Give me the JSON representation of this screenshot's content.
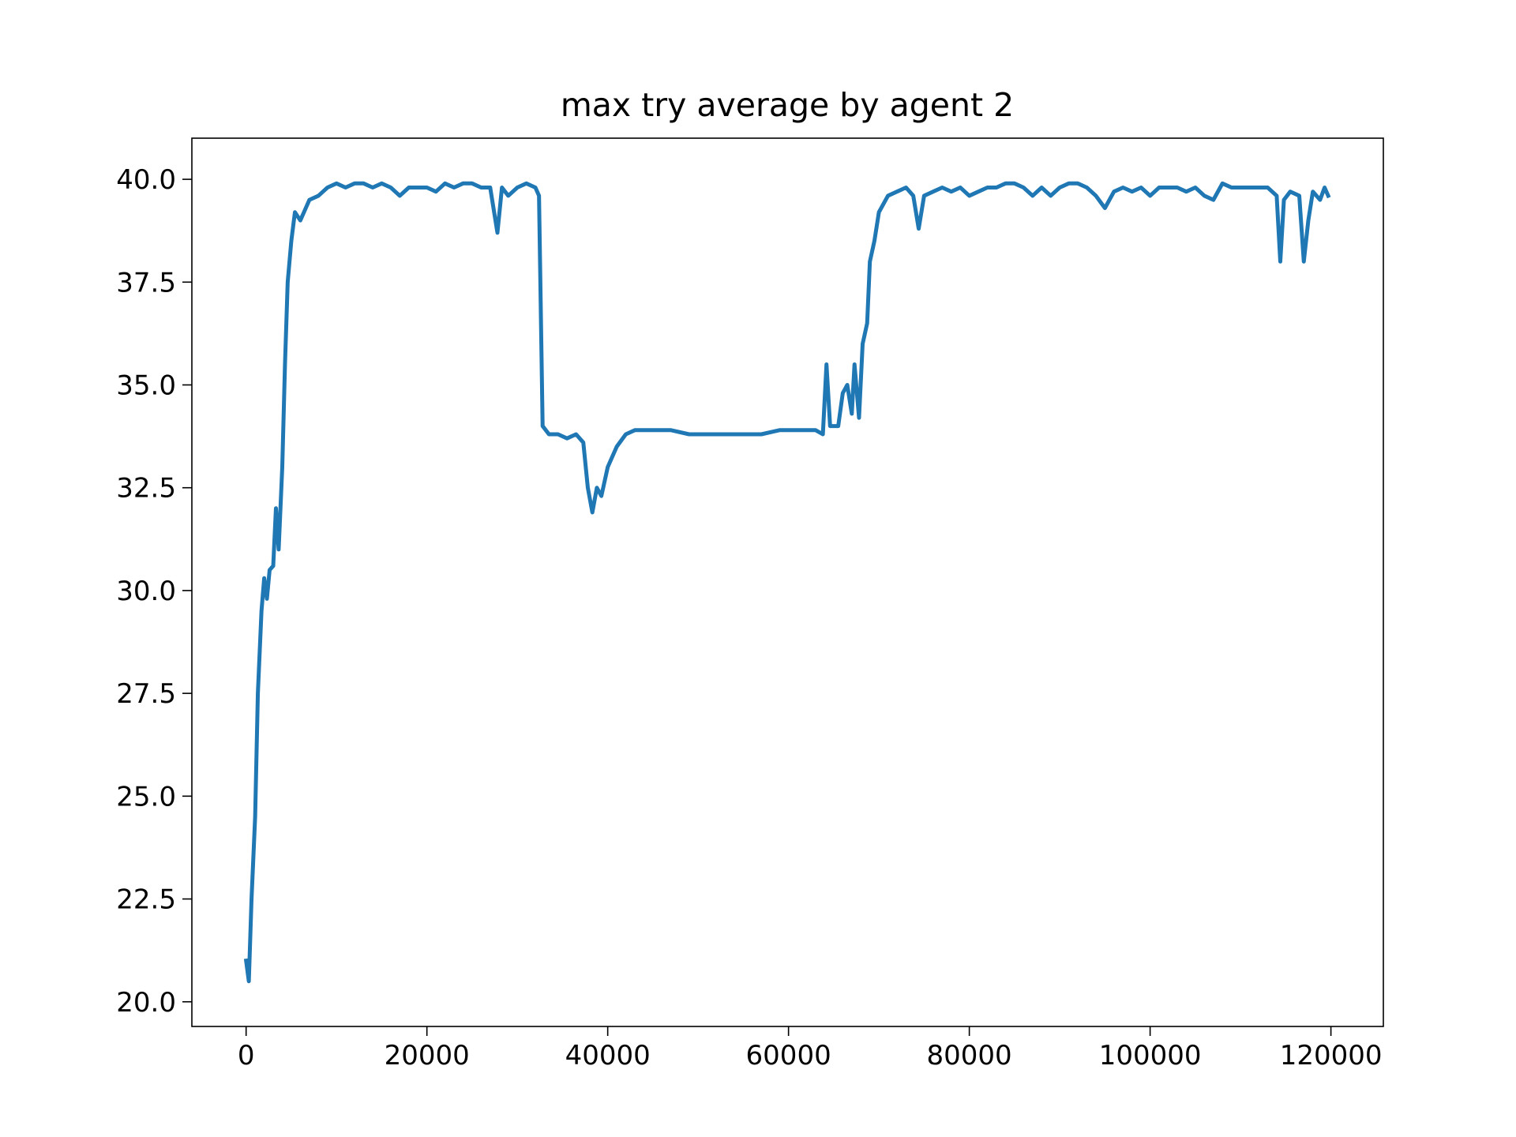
{
  "chart_data": {
    "type": "line",
    "title": "max try average by agent 2",
    "x": [
      0,
      300,
      600,
      1000,
      1300,
      1700,
      2000,
      2300,
      2600,
      3000,
      3300,
      3600,
      4000,
      4300,
      4600,
      5000,
      5400,
      6000,
      7000,
      8000,
      9000,
      10000,
      11000,
      12000,
      13000,
      14000,
      15000,
      16000,
      17000,
      18000,
      19000,
      20000,
      21000,
      22000,
      23000,
      24000,
      25000,
      26000,
      27000,
      27800,
      28300,
      29000,
      30000,
      31000,
      32000,
      32400,
      32800,
      33500,
      34500,
      35500,
      36500,
      37300,
      37800,
      38300,
      38800,
      39300,
      40000,
      41000,
      42000,
      43000,
      45000,
      47000,
      49000,
      51000,
      53000,
      55000,
      57000,
      59000,
      61000,
      63000,
      63800,
      64200,
      64600,
      65500,
      66000,
      66500,
      67000,
      67300,
      67800,
      68200,
      68700,
      69000,
      69500,
      70000,
      71000,
      72000,
      73000,
      73800,
      74400,
      75000,
      76000,
      77000,
      78000,
      79000,
      80000,
      81000,
      82000,
      83000,
      84000,
      85000,
      86000,
      87000,
      88000,
      89000,
      90000,
      91000,
      92000,
      93000,
      94000,
      95000,
      96000,
      97000,
      98000,
      99000,
      100000,
      101000,
      102000,
      103000,
      104000,
      105000,
      106000,
      107000,
      108000,
      109000,
      110000,
      111000,
      112000,
      113000,
      114000,
      114400,
      114800,
      115500,
      116500,
      117000,
      117500,
      118000,
      118800,
      119300,
      119700
    ],
    "series": [
      {
        "color": "#1f77b4",
        "values": [
          21.0,
          20.5,
          22.5,
          24.5,
          27.5,
          29.5,
          30.3,
          29.8,
          30.5,
          30.6,
          32.0,
          31.0,
          33.0,
          35.5,
          37.5,
          38.5,
          39.2,
          39.0,
          39.5,
          39.6,
          39.8,
          39.9,
          39.8,
          39.9,
          39.9,
          39.8,
          39.9,
          39.8,
          39.6,
          39.8,
          39.8,
          39.8,
          39.7,
          39.9,
          39.8,
          39.9,
          39.9,
          39.8,
          39.8,
          38.7,
          39.8,
          39.6,
          39.8,
          39.9,
          39.8,
          39.6,
          34.0,
          33.8,
          33.8,
          33.7,
          33.8,
          33.6,
          32.5,
          31.9,
          32.5,
          32.3,
          33.0,
          33.5,
          33.8,
          33.9,
          33.9,
          33.9,
          33.8,
          33.8,
          33.8,
          33.8,
          33.8,
          33.9,
          33.9,
          33.9,
          33.8,
          35.5,
          34.0,
          34.0,
          34.8,
          35.0,
          34.3,
          35.5,
          34.2,
          36.0,
          36.5,
          38.0,
          38.5,
          39.2,
          39.6,
          39.7,
          39.8,
          39.6,
          38.8,
          39.6,
          39.7,
          39.8,
          39.7,
          39.8,
          39.6,
          39.7,
          39.8,
          39.8,
          39.9,
          39.9,
          39.8,
          39.6,
          39.8,
          39.6,
          39.8,
          39.9,
          39.9,
          39.8,
          39.6,
          39.3,
          39.7,
          39.8,
          39.7,
          39.8,
          39.6,
          39.8,
          39.8,
          39.8,
          39.7,
          39.8,
          39.6,
          39.5,
          39.9,
          39.8,
          39.8,
          39.8,
          39.8,
          39.8,
          39.6,
          38.0,
          39.5,
          39.7,
          39.6,
          38.0,
          39.0,
          39.7,
          39.5,
          39.8,
          39.6
        ]
      }
    ],
    "xlim": [
      -6000,
      125800
    ],
    "ylim": [
      19.4,
      41.0
    ],
    "xticks": [
      0,
      20000,
      40000,
      60000,
      80000,
      100000,
      120000
    ],
    "yticks": [
      {
        "value": 20,
        "label": "20.0"
      },
      22.5,
      {
        "value": 25,
        "label": "25.0"
      },
      27.5,
      {
        "value": 30,
        "label": "30.0"
      },
      32.5,
      {
        "value": 35,
        "label": "35.0"
      },
      37.5,
      {
        "value": 40,
        "label": "40.0"
      }
    ]
  }
}
